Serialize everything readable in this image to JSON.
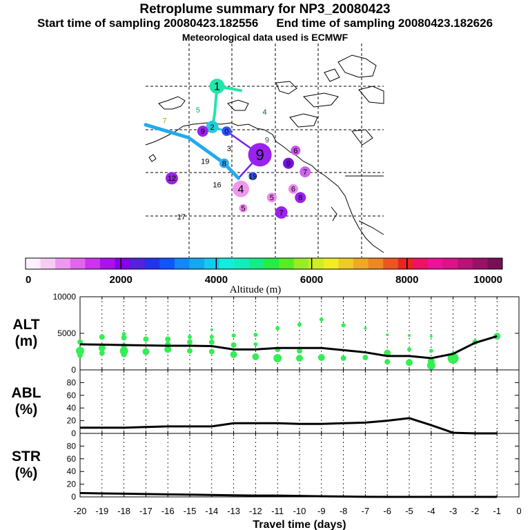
{
  "header": {
    "title": "Retroplume summary for NP3_20080423",
    "start_label": "Start time of sampling 20080423.182556",
    "end_label": "End time of sampling 20080423.182626",
    "met_label": "Meteorological data used is ECMWF"
  },
  "map": {
    "labels": [
      {
        "text": "1",
        "color": "#000000",
        "bg": "#22e6aa",
        "r": 11,
        "lon": 0.3,
        "lat": 0.2
      },
      {
        "text": "5",
        "color": "#00aa44",
        "bg": "",
        "r": 0,
        "lon": 0.22,
        "lat": 0.31
      },
      {
        "text": "4",
        "color": "#006633",
        "bg": "",
        "r": 0,
        "lon": 0.5,
        "lat": 0.32
      },
      {
        "text": "2",
        "color": "#000000",
        "bg": "#22ccdd",
        "r": 9,
        "lon": 0.28,
        "lat": 0.39
      },
      {
        "text": "9",
        "color": "#000000",
        "bg": "#9922ee",
        "r": 8,
        "lon": 0.24,
        "lat": 0.41
      },
      {
        "text": "0",
        "color": "#000000",
        "bg": "#3355ff",
        "r": 7,
        "lon": 0.34,
        "lat": 0.41
      },
      {
        "text": "9",
        "color": "#444444",
        "bg": "",
        "r": 0,
        "lon": 0.51,
        "lat": 0.45
      },
      {
        "text": "3",
        "color": "#000000",
        "bg": "",
        "r": 0,
        "lon": 0.35,
        "lat": 0.49
      },
      {
        "text": "9",
        "color": "#000000",
        "bg": "#9922ee",
        "r": 17,
        "lon": 0.48,
        "lat": 0.52
      },
      {
        "text": "6",
        "color": "#000000",
        "bg": "#cc55ee",
        "r": 7,
        "lon": 0.63,
        "lat": 0.5
      },
      {
        "text": "8",
        "color": "#000000",
        "bg": "#33aaee",
        "r": 7,
        "lon": 0.33,
        "lat": 0.56
      },
      {
        "text": "9",
        "color": "#000000",
        "bg": "#7711dd",
        "r": 8,
        "lon": 0.6,
        "lat": 0.56
      },
      {
        "text": "7",
        "color": "#000000",
        "bg": "#cc66ee",
        "r": 8,
        "lon": 0.67,
        "lat": 0.6
      },
      {
        "text": "4",
        "color": "#000000",
        "bg": "#ee99ee",
        "r": 12,
        "lon": 0.4,
        "lat": 0.68
      },
      {
        "text": "6",
        "color": "#000000",
        "bg": "#ee88ee",
        "r": 7,
        "lon": 0.62,
        "lat": 0.68
      },
      {
        "text": "8",
        "color": "#000000",
        "bg": "#9922ee",
        "r": 8,
        "lon": 0.65,
        "lat": 0.72
      },
      {
        "text": "5",
        "color": "#000000",
        "bg": "#ee88ee",
        "r": 7,
        "lon": 0.53,
        "lat": 0.72
      },
      {
        "text": "7",
        "color": "#000000",
        "bg": "#9922ee",
        "r": 9,
        "lon": 0.57,
        "lat": 0.79
      },
      {
        "text": "5",
        "color": "#000000",
        "bg": "#ee88ee",
        "r": 6,
        "lon": 0.41,
        "lat": 0.77
      },
      {
        "text": "19",
        "color": "#000000",
        "bg": "",
        "r": 0,
        "lon": 0.25,
        "lat": 0.55
      },
      {
        "text": "19",
        "color": "#000000",
        "bg": "#3355ff",
        "r": 6,
        "lon": 0.45,
        "lat": 0.62
      },
      {
        "text": "12",
        "color": "#000000",
        "bg": "#9922ee",
        "r": 9,
        "lon": 0.11,
        "lat": 0.63
      },
      {
        "text": "16",
        "color": "#000000",
        "bg": "",
        "r": 0,
        "lon": 0.3,
        "lat": 0.66
      },
      {
        "text": "17",
        "color": "#000000",
        "bg": "",
        "r": 0,
        "lon": 0.15,
        "lat": 0.81
      },
      {
        "text": "7",
        "color": "#aaaa00",
        "bg": "",
        "r": 0,
        "lon": 0.08,
        "lat": 0.36
      }
    ]
  },
  "colorbar": {
    "ticks": [
      "0",
      "2000",
      "4000",
      "6000",
      "8000",
      "10000"
    ],
    "label": "Altitude (m)",
    "colors": [
      "#fff0ff",
      "#f6ccf6",
      "#ee99f0",
      "#e066ee",
      "#cc33ee",
      "#aa11ee",
      "#8800ee",
      "#5522dd",
      "#2233ee",
      "#1155ff",
      "#1188ff",
      "#11aaee",
      "#11ccee",
      "#11eedd",
      "#11eebb",
      "#11ee88",
      "#22ee44",
      "#55ee22",
      "#99ee22",
      "#ccee22",
      "#eeee22",
      "#eecc22",
      "#eeaa22",
      "#ee8822",
      "#ee5522",
      "#ee2222",
      "#ee1166",
      "#ee1199",
      "#dd1188",
      "#bb1177",
      "#991166",
      "#771155"
    ]
  },
  "chart_data": [
    {
      "type": "scatter+line",
      "ylabel": "ALT\n(m)",
      "yticks": [
        "0",
        "5000",
        "10000"
      ],
      "ylim": [
        0,
        10000
      ],
      "xlim": [
        -20,
        0
      ],
      "median_line": {
        "x": [
          -20,
          -19,
          -18,
          -17,
          -16,
          -15,
          -14,
          -13,
          -12,
          -11,
          -10,
          -9,
          -8,
          -7,
          -6,
          -5,
          -4,
          -3,
          -2,
          -1
        ],
        "y": [
          3500,
          3450,
          3400,
          3350,
          3300,
          3300,
          3250,
          2800,
          2800,
          3000,
          3000,
          3000,
          2700,
          2400,
          1900,
          1900,
          1600,
          2200,
          3700,
          4600
        ]
      },
      "points": [
        {
          "x": -20,
          "y": 3800,
          "s": 4
        },
        {
          "x": -20,
          "y": 2600,
          "s": 6
        },
        {
          "x": -20,
          "y": 2000,
          "s": 4
        },
        {
          "x": -19,
          "y": 4500,
          "s": 4
        },
        {
          "x": -19,
          "y": 3000,
          "s": 5
        },
        {
          "x": -19,
          "y": 2300,
          "s": 4
        },
        {
          "x": -18,
          "y": 4900,
          "s": 3
        },
        {
          "x": -18,
          "y": 4400,
          "s": 4
        },
        {
          "x": -18,
          "y": 3300,
          "s": 4
        },
        {
          "x": -18,
          "y": 2600,
          "s": 6
        },
        {
          "x": -18,
          "y": 2100,
          "s": 4
        },
        {
          "x": -17,
          "y": 4200,
          "s": 4
        },
        {
          "x": -17,
          "y": 2500,
          "s": 5
        },
        {
          "x": -16,
          "y": 4200,
          "s": 4
        },
        {
          "x": -16,
          "y": 3500,
          "s": 4
        },
        {
          "x": -16,
          "y": 2800,
          "s": 5
        },
        {
          "x": -15,
          "y": 4500,
          "s": 3
        },
        {
          "x": -15,
          "y": 3800,
          "s": 4
        },
        {
          "x": -15,
          "y": 2600,
          "s": 4
        },
        {
          "x": -14,
          "y": 5500,
          "s": 2
        },
        {
          "x": -14,
          "y": 4500,
          "s": 3
        },
        {
          "x": -14,
          "y": 3800,
          "s": 4
        },
        {
          "x": -14,
          "y": 2500,
          "s": 4
        },
        {
          "x": -13,
          "y": 4700,
          "s": 3
        },
        {
          "x": -13,
          "y": 3400,
          "s": 4
        },
        {
          "x": -13,
          "y": 2100,
          "s": 5
        },
        {
          "x": -12,
          "y": 4800,
          "s": 3
        },
        {
          "x": -12,
          "y": 3500,
          "s": 3
        },
        {
          "x": -12,
          "y": 1800,
          "s": 5
        },
        {
          "x": -11,
          "y": 5700,
          "s": 3
        },
        {
          "x": -11,
          "y": 2800,
          "s": 4
        },
        {
          "x": -11,
          "y": 1600,
          "s": 6
        },
        {
          "x": -10,
          "y": 6200,
          "s": 3
        },
        {
          "x": -10,
          "y": 2600,
          "s": 4
        },
        {
          "x": -10,
          "y": 1600,
          "s": 5
        },
        {
          "x": -9,
          "y": 6900,
          "s": 3
        },
        {
          "x": -9,
          "y": 1700,
          "s": 5
        },
        {
          "x": -8,
          "y": 6100,
          "s": 3
        },
        {
          "x": -8,
          "y": 1600,
          "s": 4
        },
        {
          "x": -7,
          "y": 5700,
          "s": 2
        },
        {
          "x": -7,
          "y": 1700,
          "s": 4
        },
        {
          "x": -6,
          "y": 4800,
          "s": 2
        },
        {
          "x": -6,
          "y": 2300,
          "s": 5
        },
        {
          "x": -6,
          "y": 1100,
          "s": 4
        },
        {
          "x": -5,
          "y": 4700,
          "s": 2
        },
        {
          "x": -5,
          "y": 2800,
          "s": 3
        },
        {
          "x": -5,
          "y": 1000,
          "s": 5
        },
        {
          "x": -4,
          "y": 4600,
          "s": 2
        },
        {
          "x": -4,
          "y": 2600,
          "s": 3
        },
        {
          "x": -4,
          "y": 1200,
          "s": 5
        },
        {
          "x": -4,
          "y": 600,
          "s": 6
        },
        {
          "x": -3,
          "y": 3000,
          "s": 1
        },
        {
          "x": -3,
          "y": 2300,
          "s": 2
        },
        {
          "x": -3,
          "y": 1600,
          "s": 8
        },
        {
          "x": -2,
          "y": 3800,
          "s": 4
        },
        {
          "x": -1,
          "y": 4600,
          "s": 5
        }
      ]
    },
    {
      "type": "line",
      "ylabel": "ABL\n(%)",
      "yticks": [
        "0",
        "20",
        "40",
        "60",
        "80"
      ],
      "ylim": [
        0,
        100
      ],
      "xlim": [
        -20,
        0
      ],
      "x": [
        -20,
        -19,
        -18,
        -17,
        -16,
        -15,
        -14,
        -13,
        -12,
        -11,
        -10,
        -9,
        -8,
        -7,
        -6,
        -5,
        -4,
        -3,
        -2,
        -1
      ],
      "y": [
        9,
        9,
        9,
        10,
        11,
        11,
        11,
        16,
        16,
        16,
        15,
        15,
        16,
        17,
        20,
        24,
        13,
        1,
        0,
        0
      ]
    },
    {
      "type": "line",
      "ylabel": "STR\n(%)",
      "yticks": [
        "0",
        "20",
        "40",
        "60",
        "80"
      ],
      "ylim": [
        0,
        100
      ],
      "xlim": [
        -20,
        0
      ],
      "x": [
        -20,
        -19,
        -18,
        -17,
        -16,
        -15,
        -14,
        -13,
        -12,
        -11,
        -10,
        -9,
        -8,
        -7,
        -6,
        -5,
        -4,
        -3,
        -2,
        -1
      ],
      "y": [
        6,
        5.5,
        5,
        4.5,
        4,
        3.5,
        3,
        2.5,
        2,
        2,
        1.5,
        1,
        0.5,
        0.2,
        0,
        0,
        0,
        0,
        0,
        0
      ],
      "xlabel": "Travel time (days)",
      "xticks": [
        "-20",
        "-19",
        "-18",
        "-17",
        "-16",
        "-15",
        "-14",
        "-13",
        "-12",
        "-11",
        "-10",
        "-9",
        "-8",
        "-7",
        "-6",
        "-5",
        "-4",
        "-3",
        "-2",
        "-1",
        "0"
      ]
    }
  ]
}
